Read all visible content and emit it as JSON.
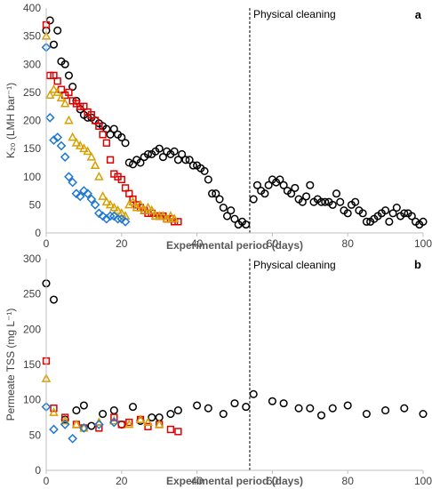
{
  "colors": {
    "black": "#000000",
    "red": "#e00000",
    "gold": "#d6a000",
    "blue": "#1f77d4",
    "axis": "#bfbfbf"
  },
  "chart_data": [
    {
      "type": "scatter",
      "panel_label": "a",
      "xlabel": "Experimental period (days)",
      "ylabel": "K₂₀ (LMH bar⁻¹)",
      "xlim": [
        0,
        100
      ],
      "ylim": [
        0,
        400
      ],
      "xticks": [
        0,
        20,
        40,
        60,
        80,
        100
      ],
      "yticks": [
        0,
        50,
        100,
        150,
        200,
        250,
        300,
        350,
        400
      ],
      "xtick_labels": [
        "0",
        "20",
        "40",
        "60",
        "80",
        "100"
      ],
      "ytick_labels": [
        "0",
        "50",
        "100",
        "150",
        "200",
        "250",
        "300",
        "350",
        "400"
      ],
      "grid": false,
      "legend": "none",
      "annotation": {
        "x": 54,
        "label": "Physical cleaning"
      },
      "series": [
        {
          "marker": "circle",
          "color": "#000000",
          "x": [
            0,
            1,
            2,
            3,
            4,
            5,
            6,
            7,
            8,
            9,
            10,
            11,
            12,
            13,
            14,
            15,
            16,
            17,
            18,
            19,
            20,
            21,
            22,
            23,
            24,
            25,
            26,
            27,
            28,
            29,
            30,
            31,
            32,
            33,
            34,
            35,
            36,
            37,
            38,
            39,
            40,
            41,
            42,
            43,
            44,
            45,
            46,
            47,
            48,
            49,
            50,
            51,
            52,
            53,
            55,
            56,
            57,
            58,
            59,
            60,
            61,
            62,
            63,
            64,
            65,
            66,
            67,
            68,
            69,
            70,
            71,
            72,
            73,
            74,
            75,
            76,
            77,
            78,
            79,
            80,
            81,
            82,
            83,
            84,
            85,
            86,
            87,
            88,
            89,
            90,
            91,
            92,
            93,
            94,
            95,
            96,
            97,
            98,
            99,
            100
          ],
          "y": [
            360,
            378,
            335,
            360,
            305,
            300,
            280,
            260,
            235,
            220,
            210,
            205,
            205,
            200,
            195,
            190,
            185,
            175,
            185,
            175,
            170,
            160,
            125,
            122,
            130,
            125,
            135,
            140,
            140,
            145,
            150,
            135,
            145,
            140,
            145,
            130,
            140,
            130,
            130,
            120,
            120,
            115,
            110,
            95,
            70,
            70,
            60,
            45,
            30,
            40,
            25,
            15,
            20,
            15,
            60,
            85,
            75,
            70,
            85,
            95,
            90,
            95,
            85,
            75,
            70,
            80,
            60,
            55,
            65,
            85,
            55,
            60,
            55,
            55,
            55,
            50,
            70,
            55,
            40,
            35,
            50,
            55,
            40,
            35,
            20,
            20,
            25,
            30,
            35,
            40,
            20,
            35,
            45,
            30,
            35,
            35,
            30,
            20,
            15,
            20
          ]
        },
        {
          "marker": "square",
          "color": "#e00000",
          "x": [
            0,
            1,
            2,
            3,
            4,
            5,
            6,
            7,
            8,
            9,
            10,
            11,
            12,
            13,
            14,
            15,
            16,
            17,
            18,
            19,
            20,
            21,
            22,
            23,
            24,
            25,
            26,
            27,
            28,
            29,
            30,
            31,
            32,
            33,
            34,
            35
          ],
          "y": [
            370,
            280,
            280,
            270,
            255,
            245,
            250,
            235,
            230,
            225,
            225,
            215,
            210,
            200,
            190,
            175,
            160,
            130,
            105,
            100,
            95,
            80,
            70,
            60,
            50,
            45,
            40,
            35,
            35,
            30,
            30,
            30,
            25,
            25,
            20,
            20
          ]
        },
        {
          "marker": "triangle",
          "color": "#d6a000",
          "x": [
            0,
            1,
            2,
            3,
            4,
            5,
            6,
            7,
            8,
            9,
            10,
            11,
            12,
            13,
            14,
            15,
            16,
            17,
            18,
            19,
            20,
            21,
            22,
            23,
            24,
            25,
            26,
            27,
            28,
            29,
            30,
            31,
            32,
            33,
            34
          ],
          "y": [
            350,
            245,
            255,
            250,
            240,
            230,
            200,
            170,
            160,
            155,
            150,
            145,
            135,
            120,
            100,
            65,
            55,
            50,
            45,
            40,
            35,
            30,
            50,
            55,
            45,
            50,
            40,
            45,
            40,
            30,
            30,
            30,
            25,
            30,
            25
          ]
        },
        {
          "marker": "diamond",
          "color": "#1f77d4",
          "x": [
            0,
            1,
            2,
            3,
            4,
            5,
            6,
            7,
            8,
            9,
            10,
            11,
            12,
            13,
            14,
            15,
            16,
            17,
            18,
            19,
            20,
            21
          ],
          "y": [
            330,
            205,
            165,
            170,
            155,
            135,
            100,
            90,
            70,
            65,
            75,
            70,
            60,
            50,
            35,
            30,
            25,
            30,
            30,
            25,
            25,
            20
          ]
        }
      ]
    },
    {
      "type": "scatter",
      "panel_label": "b",
      "xlabel": "Experimental period (days)",
      "ylabel": "Permeate TSS (mg L⁻¹)",
      "xlim": [
        0,
        100
      ],
      "ylim": [
        0,
        300
      ],
      "xticks": [
        0,
        20,
        40,
        60,
        80,
        100
      ],
      "yticks": [
        0,
        50,
        100,
        150,
        200,
        250,
        300
      ],
      "xtick_labels": [
        "0",
        "20",
        "40",
        "60",
        "80",
        "100"
      ],
      "ytick_labels": [
        "0",
        "50",
        "100",
        "150",
        "200",
        "250",
        "300"
      ],
      "grid": false,
      "legend": "none",
      "annotation": {
        "x": 54,
        "label": "Physical cleaning"
      },
      "series": [
        {
          "marker": "circle",
          "color": "#000000",
          "x": [
            0,
            2,
            5,
            8,
            10,
            12,
            15,
            18,
            20,
            23,
            25,
            28,
            30,
            33,
            35,
            40,
            43,
            47,
            50,
            53,
            55,
            60,
            63,
            67,
            70,
            73,
            76,
            80,
            85,
            90,
            95,
            100
          ],
          "y": [
            265,
            242,
            72,
            85,
            92,
            63,
            80,
            85,
            65,
            90,
            70,
            75,
            75,
            80,
            85,
            92,
            88,
            80,
            95,
            90,
            108,
            98,
            95,
            88,
            88,
            78,
            88,
            92,
            80,
            85,
            88,
            80
          ]
        },
        {
          "marker": "square",
          "color": "#e00000",
          "x": [
            0,
            2,
            5,
            8,
            10,
            14,
            18,
            20,
            22,
            25,
            27,
            30,
            33,
            35
          ],
          "y": [
            155,
            88,
            75,
            65,
            60,
            60,
            75,
            65,
            68,
            72,
            62,
            65,
            58,
            55
          ]
        },
        {
          "marker": "triangle",
          "color": "#d6a000",
          "x": [
            0,
            2,
            5,
            8,
            10,
            14,
            18,
            22,
            25,
            27,
            30
          ],
          "y": [
            130,
            82,
            70,
            65,
            60,
            68,
            70,
            65,
            72,
            68,
            65
          ]
        },
        {
          "marker": "diamond",
          "color": "#1f77d4",
          "x": [
            0,
            2,
            5,
            7,
            10,
            14,
            18
          ],
          "y": [
            90,
            58,
            65,
            45,
            60,
            65,
            68
          ]
        }
      ]
    }
  ]
}
